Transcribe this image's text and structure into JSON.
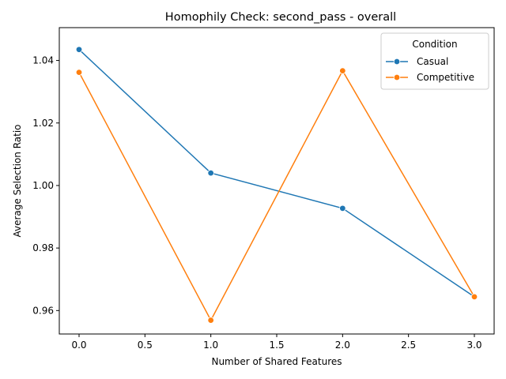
{
  "chart_data": {
    "type": "line",
    "title": "Homophily Check: second_pass - overall",
    "xlabel": "Number of Shared Features",
    "ylabel": "Average Selection Ratio",
    "xlim": [
      -0.15,
      3.15
    ],
    "ylim": [
      0.9525,
      1.0505
    ],
    "xticks": [
      0.0,
      0.5,
      1.0,
      1.5,
      2.0,
      2.5,
      3.0
    ],
    "xtick_labels": [
      "0.0",
      "0.5",
      "1.0",
      "1.5",
      "2.0",
      "2.5",
      "3.0"
    ],
    "yticks": [
      0.96,
      0.98,
      1.0,
      1.02,
      1.04
    ],
    "ytick_labels": [
      "0.96",
      "0.98",
      "1.00",
      "1.02",
      "1.04"
    ],
    "grid": false,
    "legend": {
      "title": "Condition",
      "placement": "top-right"
    },
    "series": [
      {
        "name": "Casual",
        "color": "#1f77b4",
        "x": [
          0,
          1,
          2,
          3
        ],
        "y": [
          1.0435,
          1.004,
          0.9927,
          0.9644
        ]
      },
      {
        "name": "Competitive",
        "color": "#ff7f0e",
        "x": [
          0,
          1,
          2,
          3
        ],
        "y": [
          1.0362,
          0.9569,
          1.0367,
          0.9644
        ]
      }
    ]
  }
}
